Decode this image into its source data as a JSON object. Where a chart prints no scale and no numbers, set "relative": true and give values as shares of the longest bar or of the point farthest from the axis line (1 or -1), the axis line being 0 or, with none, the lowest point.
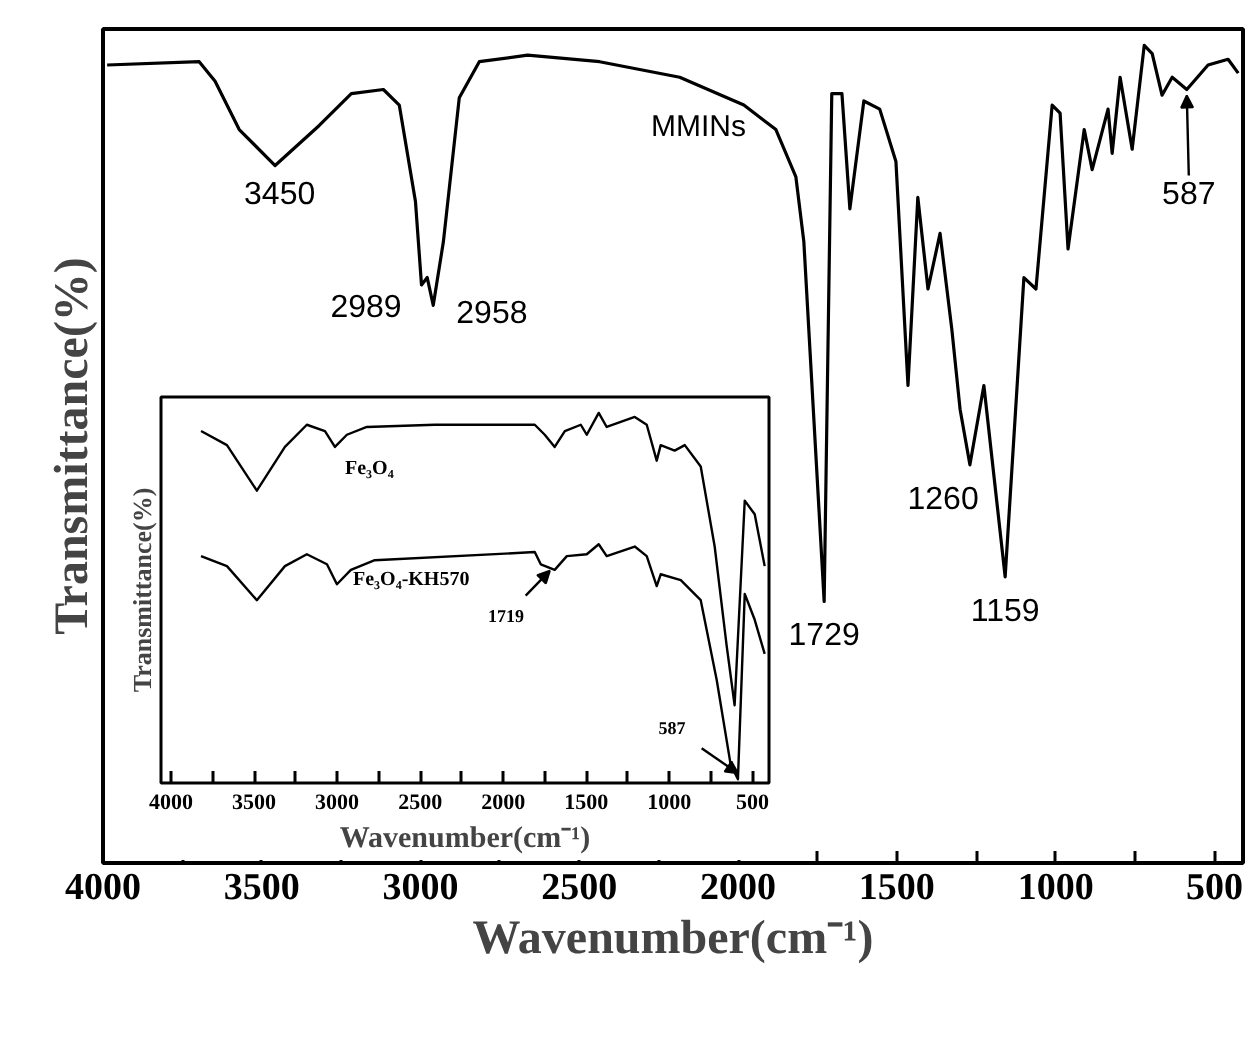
{
  "chart_data": [
    {
      "type": "line",
      "relative": true,
      "xlabel": "Wavenumber(cm⁻¹)",
      "ylabel": "Transmittance(%)",
      "xlim": [
        4000,
        410
      ],
      "xticks": [
        4000,
        {
          "value": 3750,
          "label": null
        },
        3500,
        {
          "value": 3250,
          "label": null
        },
        3000,
        {
          "value": 2750,
          "label": null
        },
        2500,
        {
          "value": 2250,
          "label": null
        },
        2000,
        {
          "value": 1750,
          "label": null
        },
        1500,
        {
          "value": 1250,
          "label": null
        },
        1000,
        {
          "value": 750,
          "label": null
        },
        500
      ],
      "tick_labels": "x",
      "grid": false,
      "legend": false,
      "series": [
        {
          "name": "MMINs",
          "color": "#000000",
          "x": [
            3987,
            3697,
            3647,
            3571,
            3458,
            3319,
            3218,
            3117,
            3067,
            3016,
            2997,
            2979,
            2960,
            2928,
            2878,
            2815,
            2663,
            2436,
            2184,
            1982,
            1881,
            1818,
            1793,
            1729,
            1705,
            1673,
            1648,
            1604,
            1554,
            1503,
            1465,
            1434,
            1402,
            1364,
            1327,
            1301,
            1270,
            1226,
            1159,
            1100,
            1062,
            1011,
            986,
            961,
            910,
            885,
            835,
            822,
            797,
            759,
            721,
            696,
            665,
            633,
            587,
            520,
            457,
            425
          ],
          "values": [
            0.976,
            0.98,
            0.956,
            0.897,
            0.853,
            0.902,
            0.941,
            0.946,
            0.927,
            0.809,
            0.707,
            0.716,
            0.682,
            0.76,
            0.936,
            0.98,
            0.988,
            0.98,
            0.961,
            0.927,
            0.897,
            0.839,
            0.76,
            0.32,
            0.941,
            0.941,
            0.8,
            0.932,
            0.922,
            0.858,
            0.584,
            0.814,
            0.702,
            0.77,
            0.653,
            0.555,
            0.487,
            0.584,
            0.35,
            0.716,
            0.702,
            0.927,
            0.917,
            0.751,
            0.897,
            0.848,
            0.922,
            0.868,
            0.961,
            0.873,
            1.0,
            0.99,
            0.939,
            0.961,
            0.946,
            0.976,
            0.983,
            0.966
          ]
        }
      ],
      "annotations": [
        {
          "text": "3450",
          "x": 3450,
          "y": 0.853
        },
        {
          "text": "2989",
          "x": 2989,
          "y": 0.707
        },
        {
          "text": "2958",
          "x": 2958,
          "y": 0.682
        },
        {
          "text": "1729",
          "x": 1729,
          "y": 0.32
        },
        {
          "text": "1260",
          "x": 1260,
          "y": 0.487
        },
        {
          "text": "1159",
          "x": 1159,
          "y": 0.35
        },
        {
          "text": "587",
          "x": 587,
          "y": 0.946
        }
      ]
    },
    {
      "type": "line",
      "relative": true,
      "xlabel": "Wavenumber(cm⁻¹)",
      "ylabel": "Transmittance(%)",
      "xlim": [
        4060,
        400
      ],
      "xticks": [
        4000,
        {
          "value": 3750,
          "label": null
        },
        3500,
        {
          "value": 3250,
          "label": null
        },
        3000,
        {
          "value": 2750,
          "label": null
        },
        2500,
        {
          "value": 2250,
          "label": null
        },
        2000,
        {
          "value": 1750,
          "label": null
        },
        1500,
        {
          "value": 1250,
          "label": null
        },
        1000,
        {
          "value": 750,
          "label": null
        },
        500
      ],
      "tick_labels": "x",
      "grid": false,
      "legend": false,
      "series": [
        {
          "name": "Fe₃O₄",
          "color": "#000000",
          "x": [
            3819,
            3663,
            3483,
            3314,
            3182,
            3073,
            3013,
            2941,
            2821,
            2412,
            1810,
            1750,
            1690,
            1629,
            1533,
            1497,
            1425,
            1377,
            1208,
            1136,
            1076,
            1052,
            968,
            907,
            811,
            727,
            655,
            607,
            546,
            486,
            426
          ],
          "values": [
            0.951,
            0.913,
            0.79,
            0.908,
            0.968,
            0.951,
            0.908,
            0.941,
            0.962,
            0.968,
            0.968,
            0.941,
            0.908,
            0.951,
            0.968,
            0.941,
            1.0,
            0.962,
            0.989,
            0.968,
            0.871,
            0.913,
            0.898,
            0.913,
            0.855,
            0.639,
            0.371,
            0.21,
            0.763,
            0.726,
            0.586
          ]
        },
        {
          "name": "Fe₃O₄-KH570",
          "color": "#000000",
          "x": [
            3819,
            3663,
            3483,
            3314,
            3182,
            3061,
            3001,
            2917,
            2773,
            1810,
            1774,
            1690,
            1617,
            1497,
            1425,
            1377,
            1208,
            1136,
            1076,
            1052,
            931,
            811,
            715,
            631,
            587,
            546,
            486,
            426
          ],
          "values": [
            0.613,
            0.586,
            0.494,
            0.586,
            0.618,
            0.591,
            0.537,
            0.576,
            0.602,
            0.624,
            0.591,
            0.576,
            0.613,
            0.618,
            0.645,
            0.613,
            0.639,
            0.613,
            0.532,
            0.564,
            0.548,
            0.494,
            0.279,
            0.05,
            0.01,
            0.511,
            0.441,
            0.349
          ]
        }
      ],
      "annotations": [
        {
          "text": "1719",
          "x": 1719,
          "y": 0.59
        },
        {
          "text": "587",
          "x": 587,
          "y": 0.01
        }
      ]
    }
  ]
}
